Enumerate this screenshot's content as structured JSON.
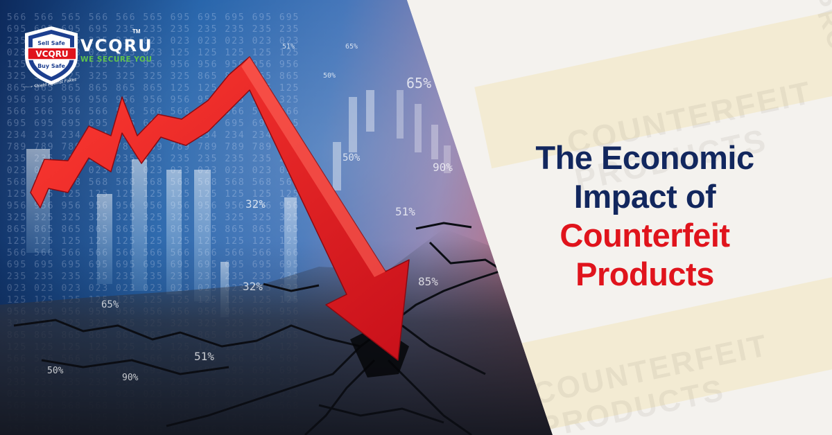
{
  "logo": {
    "badge_top": "Sell Safe",
    "badge_center": "VCQRU",
    "badge_bottom": "Buy Safe",
    "badge_ring": "Your Shield Against Fakes",
    "name": "VCQRU",
    "trademark": "TM",
    "tagline": "WE SECURE YOU",
    "colors": {
      "shield": "#1d3f8f",
      "accent_red": "#e0141c",
      "tagline_green": "#5ec24e"
    }
  },
  "headline": {
    "line1": "The Economic",
    "line2": "Impact of",
    "line3": "Counterfeit",
    "line4": "Products",
    "colors": {
      "dark": "#12275e",
      "red": "#e0141c"
    }
  },
  "background_labels": {
    "percentages": [
      "51%",
      "65%",
      "50%",
      "65%",
      "50%",
      "90%",
      "32%",
      "51%",
      "85%",
      "32%",
      "65%",
      "51%",
      "50%",
      "90%"
    ],
    "tape_text": "COUNTERFEIT PRODUCTS"
  },
  "icons": {
    "arrow": "down-trend-arrow",
    "shield": "shield-logo-icon"
  }
}
